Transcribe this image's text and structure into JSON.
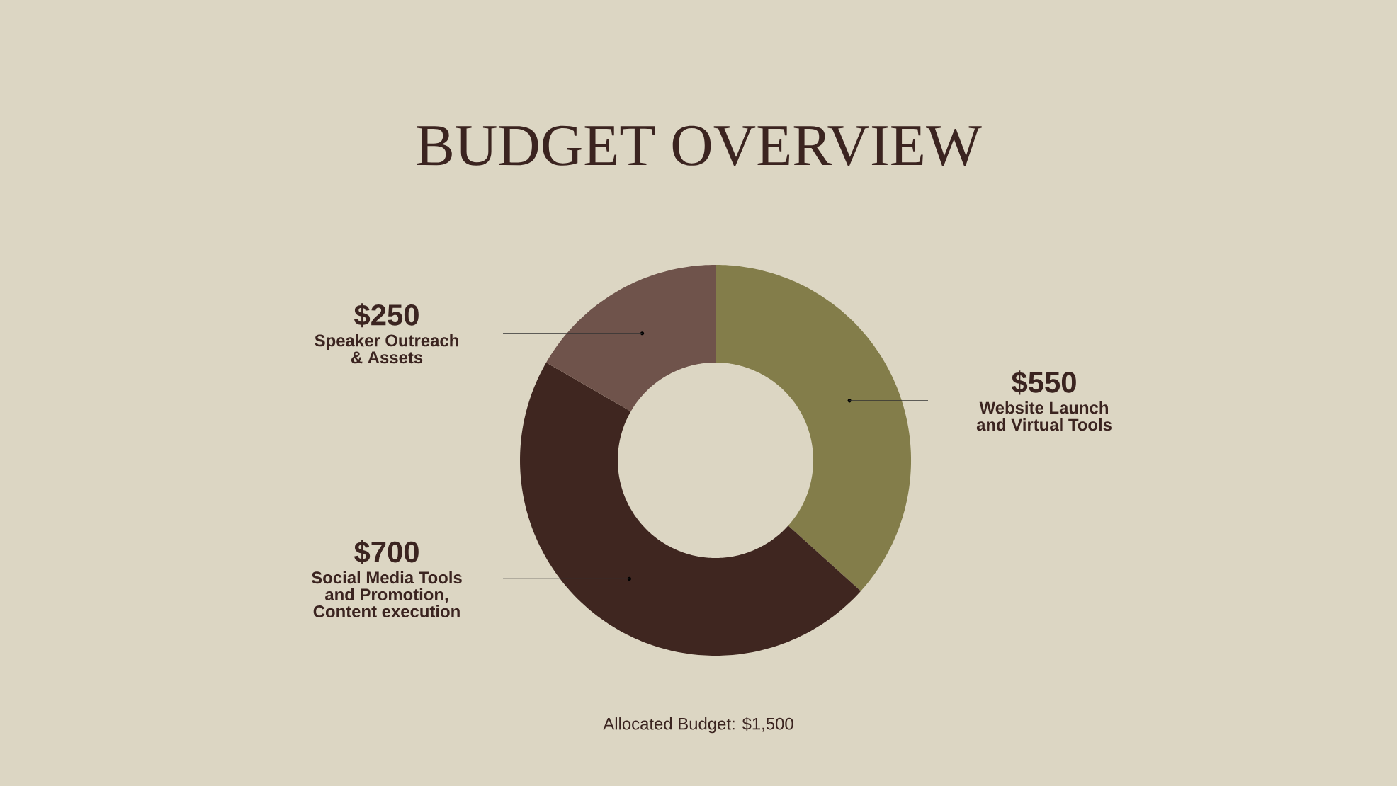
{
  "chart_data": {
    "type": "donut",
    "title": "BUDGET OVERVIEW",
    "categories": [
      "Website Launch and Virtual Tools",
      "Social Media Tools and Promotion, Content execution",
      "Speaker Outreach & Assets"
    ],
    "values": [
      550,
      700,
      250
    ],
    "value_labels": [
      "$550",
      "$700",
      "$250"
    ],
    "colors": [
      "#837d4a",
      "#3f2620",
      "#6f534b"
    ],
    "annotations": [
      "Allocated Budget: $1,500"
    ]
  }
}
